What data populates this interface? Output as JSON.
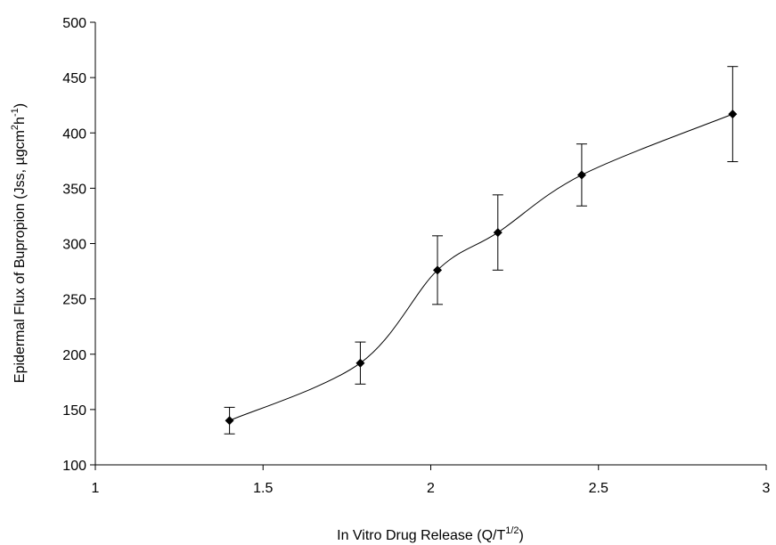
{
  "chart_data": {
    "type": "line",
    "title": "",
    "xlabel": {
      "text": "In Vitro Drug Release (Q/T",
      "sup": "1/2",
      "close": ")"
    },
    "ylabel": {
      "part1": "Epidermal Flux of Bupropion (Jss, µgcm",
      "sup1": "2",
      "part2": "h",
      "sup2": "-1",
      "part3": ")"
    },
    "xlim": [
      1,
      3
    ],
    "ylim": [
      100,
      500
    ],
    "x_ticks": [
      1,
      1.5,
      2,
      2.5,
      3
    ],
    "x_tick_labels": [
      "1",
      "1.5",
      "2",
      "2.5",
      "3"
    ],
    "y_ticks": [
      100,
      150,
      200,
      250,
      300,
      350,
      400,
      450,
      500
    ],
    "y_tick_labels": [
      "100",
      "150",
      "200",
      "250",
      "300",
      "350",
      "400",
      "450",
      "500"
    ],
    "grid": false,
    "series": [
      {
        "x": [
          1.4,
          1.79,
          2.02,
          2.2,
          2.45,
          2.9
        ],
        "y": [
          140,
          192,
          276,
          310,
          362,
          417
        ],
        "error": [
          12,
          19,
          31,
          34,
          28,
          43
        ],
        "marker": "diamond",
        "line": "smooth",
        "color": "#000000"
      }
    ]
  }
}
